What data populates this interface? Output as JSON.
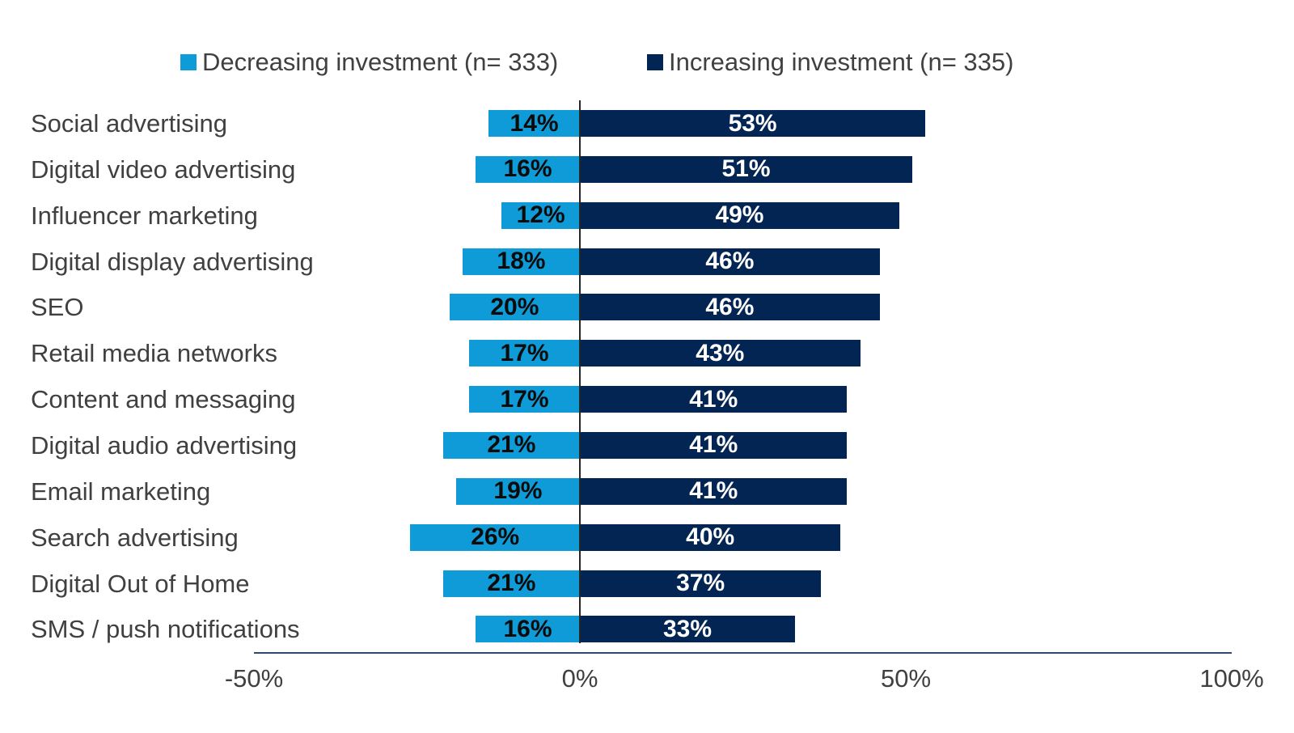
{
  "chart_data": {
    "type": "bar",
    "orientation": "horizontal-diverging",
    "title": "",
    "categories": [
      "Social advertising",
      "Digital video advertising",
      "Influencer marketing",
      "Digital display advertising",
      "SEO",
      "Retail media networks",
      "Content and messaging",
      "Digital audio advertising",
      "Email marketing",
      "Search advertising",
      "Digital Out of Home",
      "SMS / push notifications"
    ],
    "series": [
      {
        "name": "Decreasing investment (n= 333)",
        "direction": "left",
        "color": "#0f9bd7",
        "label_color": "#0b0b0b",
        "values": [
          14,
          16,
          12,
          18,
          20,
          17,
          17,
          21,
          19,
          26,
          21,
          16
        ],
        "labels": [
          "14%",
          "16%",
          "12%",
          "18%",
          "20%",
          "17%",
          "17%",
          "21%",
          "19%",
          "26%",
          "21%",
          "16%"
        ]
      },
      {
        "name": "Increasing investment (n= 335)",
        "direction": "right",
        "color": "#022553",
        "label_color": "#ffffff",
        "values": [
          53,
          51,
          49,
          46,
          46,
          43,
          41,
          41,
          41,
          40,
          37,
          33
        ],
        "labels": [
          "53%",
          "51%",
          "49%",
          "46%",
          "46%",
          "43%",
          "41%",
          "41%",
          "41%",
          "40%",
          "37%",
          "33%"
        ]
      }
    ],
    "xlabel": "",
    "ylabel": "",
    "x_ticks": [
      {
        "value": -50,
        "label": "-50%"
      },
      {
        "value": 0,
        "label": "0%"
      },
      {
        "value": 50,
        "label": "50%"
      },
      {
        "value": 100,
        "label": "100%"
      }
    ],
    "xlim": [
      -50,
      100
    ],
    "grid": false,
    "legend_position": "top",
    "colors": {
      "background": "#ffffff",
      "category_text": "#404040",
      "tick_text": "#404040",
      "zero_line": "#262626",
      "axis_line": "#2d4a6b"
    }
  }
}
